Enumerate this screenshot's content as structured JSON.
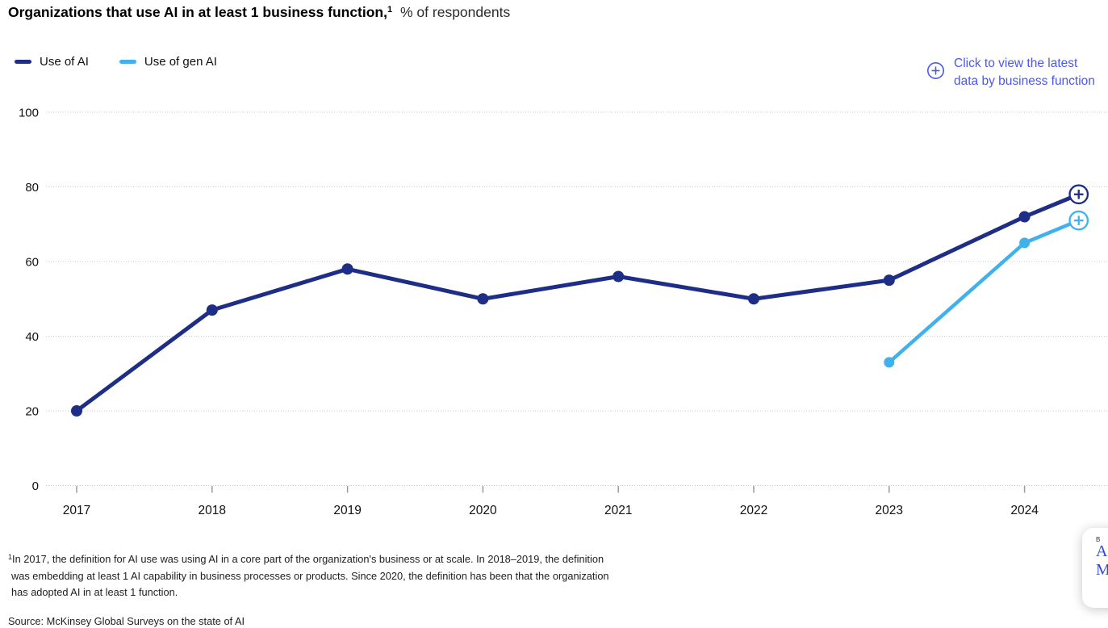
{
  "header": {
    "title_bold": "Organizations that use AI in at least 1 business function,",
    "title_sup": "1",
    "title_rest": "% of respondents"
  },
  "legend": [
    {
      "label": "Use of AI",
      "color": "#1e2d85"
    },
    {
      "label": "Use of gen AI",
      "color": "#41b1ee"
    }
  ],
  "link": {
    "icon": "plus-circle-icon",
    "line1": "Click to view the latest",
    "line2": "data by business function",
    "color": "#4b58e8"
  },
  "chart_data": {
    "type": "line",
    "title": "Organizations that use AI in at least 1 business function, % of respondents",
    "x": [
      2017,
      2018,
      2019,
      2020,
      2021,
      2022,
      2023,
      2024
    ],
    "ylim": [
      0,
      100
    ],
    "yticks": [
      0,
      20,
      40,
      60,
      80,
      100
    ],
    "grid": true,
    "gridline_color": "#c9c9c9",
    "tick_color": "#9a9a9a",
    "axis_text_color": "#111111",
    "legend_position": "top-left",
    "series": [
      {
        "name": "Use of AI",
        "color": "#1e2d85",
        "points": [
          [
            2017,
            20
          ],
          [
            2018,
            47
          ],
          [
            2019,
            58
          ],
          [
            2020,
            50
          ],
          [
            2021,
            56
          ],
          [
            2022,
            50
          ],
          [
            2023,
            55
          ],
          [
            2024,
            72
          ],
          [
            2024.4,
            78
          ]
        ],
        "last_point_marker": "plus-circle"
      },
      {
        "name": "Use of gen AI",
        "color": "#41b1ee",
        "points": [
          [
            2023,
            33
          ],
          [
            2024,
            65
          ],
          [
            2024.4,
            71
          ]
        ],
        "last_point_marker": "plus-circle"
      }
    ]
  },
  "footnote": {
    "sup": "1",
    "lines": [
      "In 2017, the definition for AI use was using AI in a core part of the organization's business or at scale. In 2018–2019, the definition",
      "was embedding at least 1 AI capability in business processes or products. Since 2020, the definition has been that the organization",
      "has adopted AI in at least 1 function."
    ]
  },
  "source": "Source: McKinsey Global Surveys on the state of AI",
  "corner_card": {
    "mini_text": "B",
    "letter_1": "A",
    "letter_2": "M",
    "letter_color": "#2b4bd8"
  }
}
